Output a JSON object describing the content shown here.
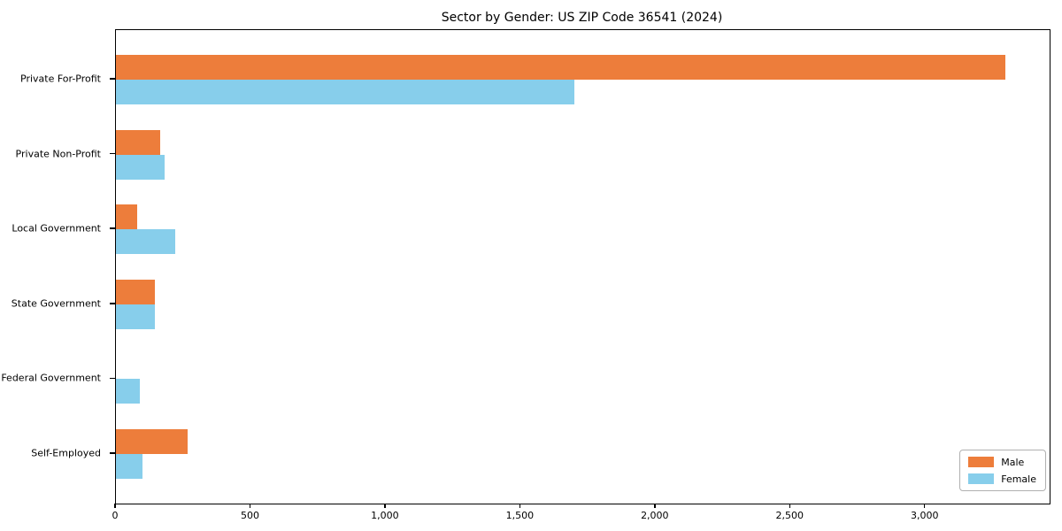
{
  "chart_data": {
    "type": "bar",
    "orientation": "horizontal",
    "title": "Sector by Gender: US ZIP Code 36541 (2024)",
    "categories": [
      "Private For-Profit",
      "Private Non-Profit",
      "Local Government",
      "State Government",
      "Federal Government",
      "Self-Employed"
    ],
    "series": [
      {
        "name": "Male",
        "color": "#ED7D3B",
        "values": [
          3295,
          165,
          80,
          145,
          0,
          265
        ]
      },
      {
        "name": "Female",
        "color": "#87CEEB",
        "values": [
          1700,
          180,
          220,
          145,
          90,
          100
        ]
      }
    ],
    "xlim": [
      0,
      3460
    ],
    "xticks": [
      0,
      500,
      1000,
      1500,
      2000,
      2500,
      3000
    ],
    "xtick_labels": [
      "0",
      "500",
      "1,000",
      "1,500",
      "2,000",
      "2,500",
      "3,000"
    ],
    "ylabel": "",
    "xlabel": "",
    "grid": false,
    "legend_position": "lower right"
  }
}
